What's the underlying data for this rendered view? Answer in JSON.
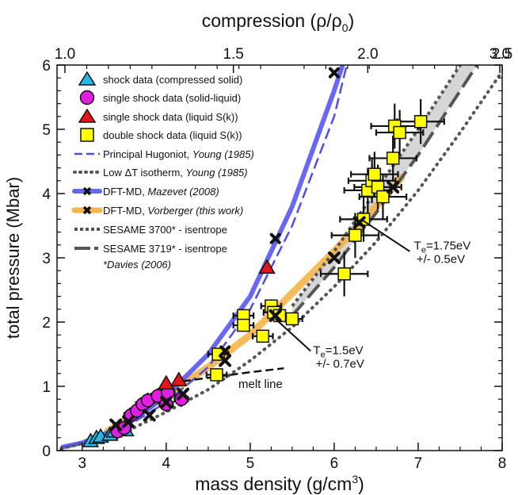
{
  "chart_data": {
    "type": "scatter",
    "title": "",
    "xlabel": "mass density (g/cm",
    "xlabel_sup": "3",
    "xlabel_end": ")",
    "ylabel": "total pressure (Mbar)",
    "x2label_pre": "compression (ρ/ρ",
    "x2label_sub": "0",
    "x2label_end": ")",
    "xlim": [
      2.7,
      8.0
    ],
    "ylim": [
      0,
      6
    ],
    "x2lim": [
      0.84375,
      2.5
    ],
    "xticks": [
      "3",
      "4",
      "5",
      "6",
      "7",
      "8"
    ],
    "yticks": [
      "0",
      "1",
      "2",
      "3",
      "4",
      "5",
      "6"
    ],
    "x2ticks": [
      "1.0",
      "1.5",
      "2.0",
      "2.5",
      "3.0"
    ],
    "grid": false,
    "legend_position": "top-left",
    "colors": {
      "cyan": "#29b6e8",
      "magenta": "#e11ee1",
      "red": "#e8141a",
      "yellow": "#ffff00",
      "blue": "#4d4df0",
      "orange": "#f5b54a",
      "gray": "#555555",
      "band": "#d6d6d6"
    },
    "legend": [
      {
        "label": "shock data (compressed solid)"
      },
      {
        "label": "single shock data (solid-liquid)"
      },
      {
        "label": "single shock data (liquid S(k))"
      },
      {
        "label": "double shock data (liquid S(k))"
      },
      {
        "label": "Principal Hugoniot, ",
        "cite": "Young (1985)"
      },
      {
        "label": "Low ΔT isotherm, ",
        "cite": "Young (1985)"
      },
      {
        "label": "DFT-MD, ",
        "cite": "Mazevet (2008)"
      },
      {
        "label": "DFT-MD, ",
        "cite": "Vorberger (this work)"
      },
      {
        "label": "SESAME 3700* - isentrope"
      },
      {
        "label": "SESAME 3719* - isentrope"
      },
      {
        "label": "",
        "cite": "*Davies (2006)"
      }
    ],
    "series": [
      {
        "kind": "cyan_triangles",
        "x": [
          3.1,
          3.17,
          3.22,
          3.33,
          3.38,
          3.52
        ],
        "y": [
          0.15,
          0.2,
          0.22,
          0.25,
          0.3,
          0.32
        ]
      },
      {
        "kind": "magenta_circles",
        "x": [
          3.42,
          3.5,
          3.58,
          3.65,
          3.72,
          3.78,
          3.9,
          4.0,
          4.02,
          4.18
        ],
        "y": [
          0.3,
          0.35,
          0.55,
          0.62,
          0.72,
          0.78,
          0.85,
          0.72,
          0.9,
          0.8
        ]
      },
      {
        "kind": "red_triangles",
        "x": [
          4.0,
          4.15,
          5.2
        ],
        "y": [
          1.05,
          1.1,
          2.85
        ]
      },
      {
        "kind": "yellow_squares",
        "x": [
          4.6,
          4.62,
          4.92,
          4.92,
          5.15,
          5.25,
          5.28,
          5.35,
          5.5,
          6.12,
          6.25,
          6.35,
          6.4,
          6.45,
          6.48,
          6.52,
          6.58,
          6.7,
          6.72,
          6.78,
          7.03
        ],
        "y": [
          1.18,
          1.5,
          2.1,
          1.95,
          1.78,
          2.25,
          2.15,
          2.1,
          2.05,
          2.75,
          3.35,
          3.6,
          4.05,
          4.2,
          4.3,
          4.1,
          3.95,
          4.55,
          5.05,
          4.95,
          5.12
        ]
      },
      {
        "kind": "hugoniot_dashed",
        "x": [
          2.75,
          3.0,
          3.5,
          4.0,
          4.5,
          5.0,
          5.5,
          6.0,
          6.15
        ],
        "y": [
          0.05,
          0.12,
          0.35,
          0.75,
          1.3,
          2.2,
          3.5,
          5.2,
          6.0
        ]
      },
      {
        "kind": "isotherm_dotted",
        "x": [
          2.75,
          3.5,
          4.0,
          4.5,
          5.0,
          5.5,
          6.0,
          6.5,
          7.0,
          7.5,
          8.0
        ],
        "y": [
          0.03,
          0.28,
          0.6,
          0.95,
          1.4,
          1.92,
          2.55,
          3.25,
          4.05,
          4.95,
          5.9
        ]
      },
      {
        "kind": "mazevet_line",
        "x": [
          2.75,
          3.0,
          3.5,
          4.0,
          4.5,
          5.0,
          5.5,
          6.0,
          6.1
        ],
        "y": [
          0.05,
          0.12,
          0.38,
          0.85,
          1.5,
          2.4,
          3.8,
          5.6,
          6.0
        ]
      },
      {
        "kind": "mazevet_points",
        "x": [
          4.2,
          4.7,
          5.3,
          6.0
        ],
        "y": [
          0.88,
          1.55,
          3.3,
          5.88
        ]
      },
      {
        "kind": "vorberger_line",
        "x": [
          3.3,
          4.0,
          4.5,
          5.0,
          5.5,
          6.0,
          6.5,
          6.8
        ],
        "y": [
          0.3,
          0.85,
          1.3,
          1.8,
          2.45,
          3.1,
          3.8,
          4.25
        ]
      },
      {
        "kind": "vorberger_points",
        "x": [
          3.4,
          3.55,
          3.8,
          4.0,
          4.2,
          4.7,
          5.3,
          6.0,
          6.3,
          6.7
        ],
        "y": [
          0.4,
          0.45,
          0.55,
          0.75,
          0.88,
          1.4,
          2.1,
          3.0,
          3.55,
          4.1
        ]
      },
      {
        "kind": "sesame3700",
        "x": [
          5.5,
          6.0,
          6.5,
          7.0,
          7.5,
          7.7
        ],
        "y": [
          2.25,
          3.1,
          4.05,
          5.0,
          6.0,
          6.4
        ]
      },
      {
        "kind": "sesame3719",
        "x": [
          5.5,
          6.0,
          6.5,
          7.0,
          7.5,
          7.9
        ],
        "y": [
          2.1,
          2.85,
          3.7,
          4.6,
          5.6,
          6.4
        ]
      },
      {
        "kind": "melt_line",
        "x": [
          4.2,
          4.6,
          5.0,
          5.4
        ],
        "y": [
          1.08,
          1.15,
          1.22,
          1.28
        ]
      }
    ],
    "annotations": [
      {
        "id": "melt",
        "text": "melt line"
      },
      {
        "id": "te15",
        "pre": "T",
        "sub": "e",
        "post": "=1.5eV",
        "line2": "+/- 0.7eV"
      },
      {
        "id": "te175",
        "pre": "T",
        "sub": "e",
        "post": "=1.75eV",
        "line2": "+/- 0.5eV"
      }
    ]
  }
}
